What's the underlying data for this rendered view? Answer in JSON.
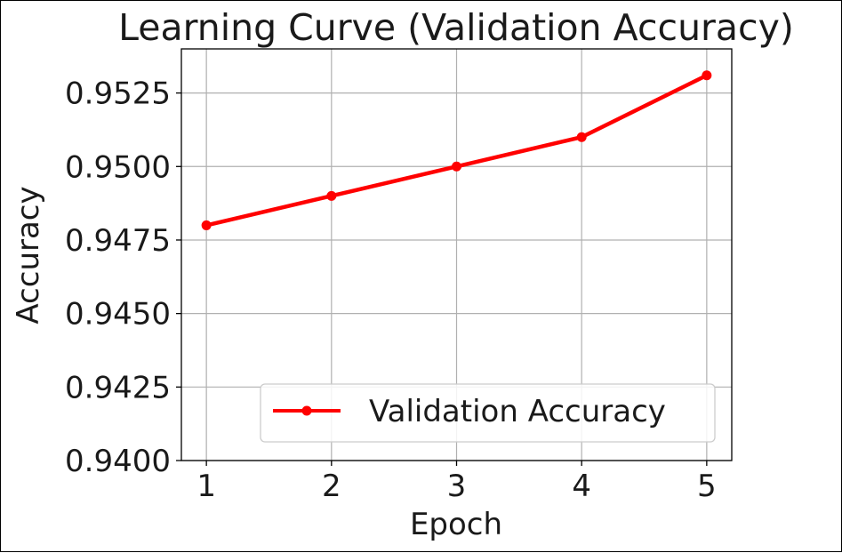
{
  "chart_data": {
    "type": "line",
    "title": "Learning Curve (Validation Accuracy)",
    "xlabel": "Epoch",
    "ylabel": "Accuracy",
    "x": [
      1,
      2,
      3,
      4,
      5
    ],
    "xlim": [
      0.8,
      5.2
    ],
    "ylim": [
      0.94,
      0.954
    ],
    "xticks": [
      "1",
      "2",
      "3",
      "4",
      "5"
    ],
    "yticks": [
      "0.9400",
      "0.9425",
      "0.9450",
      "0.9475",
      "0.9500",
      "0.9525"
    ],
    "ytick_values": [
      0.94,
      0.9425,
      0.945,
      0.9475,
      0.95,
      0.9525
    ],
    "grid": true,
    "legend_position": "lower-right",
    "series": [
      {
        "name": "Validation Accuracy",
        "values": [
          0.948,
          0.949,
          0.95,
          0.951,
          0.9531
        ],
        "color": "#ff0000",
        "marker": "circle"
      }
    ]
  }
}
